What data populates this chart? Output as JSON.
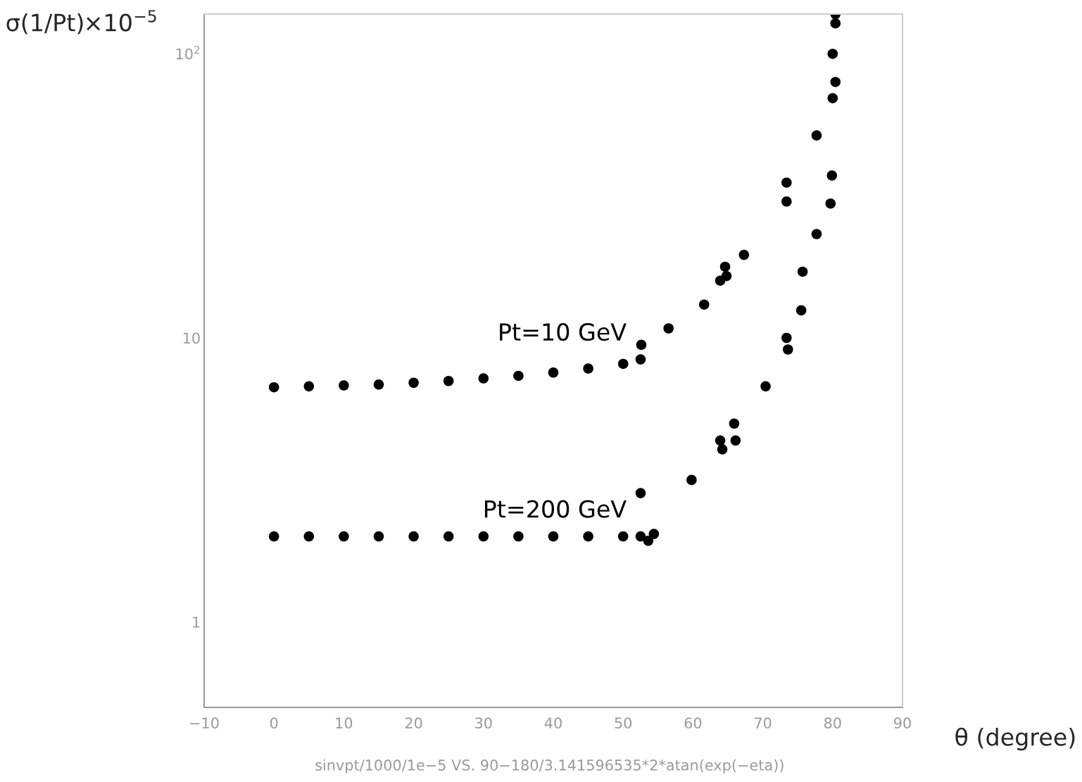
{
  "chart_data": {
    "type": "scatter",
    "ylabel": "σ(1/Pt)×10$^{−5}$",
    "xlabel": "θ (degree)",
    "annotations": [
      "sinvpt/1000/1e−5 VS. 90−180/3.141596535*2*atan(exp(−eta))"
    ],
    "log": "y",
    "grid": false,
    "legend": false,
    "marker": "circle",
    "xlim": [
      -10,
      90
    ],
    "xticks": [
      {
        "value": -10,
        "label": "−10"
      },
      0,
      10,
      20,
      30,
      40,
      50,
      60,
      70,
      80,
      90
    ],
    "ylim": [
      0.5,
      138
    ],
    "yticks": [
      {
        "value": 1,
        "label": "1"
      },
      {
        "value": 10,
        "label": "10"
      },
      {
        "value": 100,
        "label": "10$^{2}$"
      }
    ],
    "series": [
      {
        "name": "Pt=10 GeV",
        "color": "#000000",
        "x": [
          0,
          5,
          10,
          15,
          20,
          25,
          30,
          35,
          40,
          45,
          50,
          52.5,
          52.6,
          56.5,
          61.6,
          63.9,
          64.6,
          64.8,
          67.3,
          73.4,
          73.4,
          77.7,
          80.0,
          80.4,
          80.0,
          80.4,
          80.4
        ],
        "values": [
          6.7,
          6.75,
          6.8,
          6.85,
          6.95,
          7.05,
          7.2,
          7.35,
          7.55,
          7.8,
          8.1,
          8.4,
          9.45,
          10.8,
          13.1,
          15.9,
          17.8,
          16.5,
          19.6,
          30.2,
          35.2,
          51.6,
          69.8,
          79.6,
          100,
          128,
          138
        ]
      },
      {
        "name": "Pt=200 GeV",
        "color": "#000000",
        "x": [
          0,
          5,
          10,
          15,
          20,
          25,
          30,
          35,
          40,
          45,
          50,
          52.5,
          52.5,
          53.6,
          54.4,
          59.8,
          63.9,
          64.2,
          65.9,
          66.1,
          70.4,
          73.4,
          73.6,
          75.5,
          75.7,
          77.7,
          79.7,
          79.9
        ],
        "values": [
          2.0,
          2.0,
          2.0,
          2.0,
          2.0,
          2.0,
          2.0,
          2.0,
          2.0,
          2.0,
          2.0,
          2.0,
          2.84,
          1.93,
          2.04,
          3.16,
          4.35,
          4.05,
          4.99,
          4.35,
          6.75,
          10.0,
          9.1,
          12.5,
          17.1,
          23.2,
          29.7,
          37.3
        ]
      }
    ]
  }
}
